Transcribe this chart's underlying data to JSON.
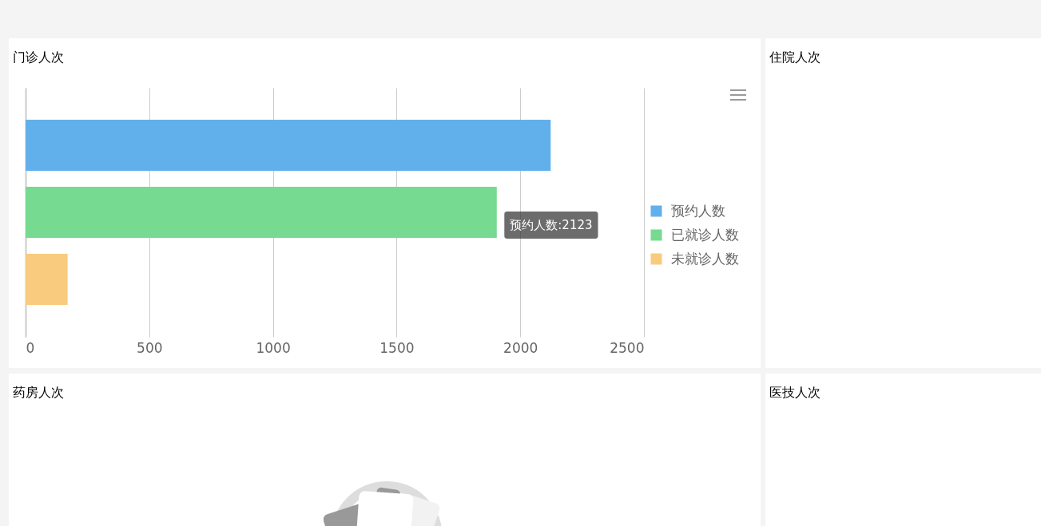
{
  "chart_data": [
    {
      "type": "bar",
      "title": "门诊人次",
      "orientation": "horizontal",
      "categories": [
        null
      ],
      "series": [
        {
          "name": "预约人数",
          "color": "#62b0eb",
          "values": [
            2123
          ]
        },
        {
          "name": "已就诊人数",
          "color": "#76da90",
          "values": [
            1905
          ]
        },
        {
          "name": "未就诊人数",
          "color": "#f8cb7e",
          "values": [
            170
          ]
        }
      ],
      "xlim": [
        0,
        2500
      ],
      "xticks": [
        0,
        500,
        1000,
        1500,
        2000,
        2500
      ],
      "grid": "x",
      "legend": "right",
      "annotations": [
        "预约人数:2123"
      ]
    },
    {
      "type": "other",
      "title": "住院人次"
    },
    {
      "type": "other",
      "title": "药房人次"
    },
    {
      "type": "other",
      "title": "医技人次"
    }
  ]
}
